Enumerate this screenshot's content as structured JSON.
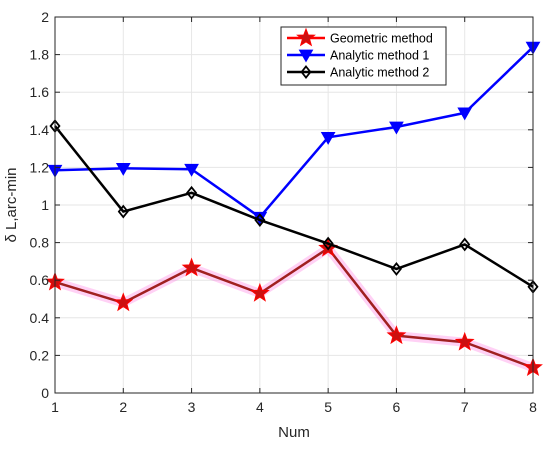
{
  "chart_data": {
    "type": "line",
    "xlabel": "Num",
    "ylabel": "δ L,arc-min",
    "x": [
      1,
      2,
      3,
      4,
      5,
      6,
      7,
      8
    ],
    "xlim": [
      1,
      8
    ],
    "ylim": [
      0,
      2
    ],
    "xticks": [
      "1",
      "2",
      "3",
      "4",
      "5",
      "6",
      "7",
      "8"
    ],
    "yticks": [
      "0",
      "0.2",
      "0.4",
      "0.6",
      "0.8",
      "1",
      "1.2",
      "1.4",
      "1.6",
      "1.8",
      "2"
    ],
    "grid": true,
    "legend_position": "top-right",
    "series": [
      {
        "name": "Geometric method",
        "color": "#ff0000",
        "marker": "star",
        "values": [
          0.59,
          0.48,
          0.665,
          0.53,
          0.77,
          0.305,
          0.27,
          0.135
        ]
      },
      {
        "name": "Analytic method 1",
        "color": "#0000ff",
        "marker": "triangle-down",
        "values": [
          1.185,
          1.195,
          1.19,
          0.935,
          1.36,
          1.415,
          1.49,
          1.84
        ]
      },
      {
        "name": "Analytic method 2",
        "color": "#000000",
        "marker": "diamond",
        "values": [
          1.42,
          0.965,
          1.065,
          0.92,
          0.795,
          0.66,
          0.79,
          0.565
        ]
      }
    ]
  }
}
